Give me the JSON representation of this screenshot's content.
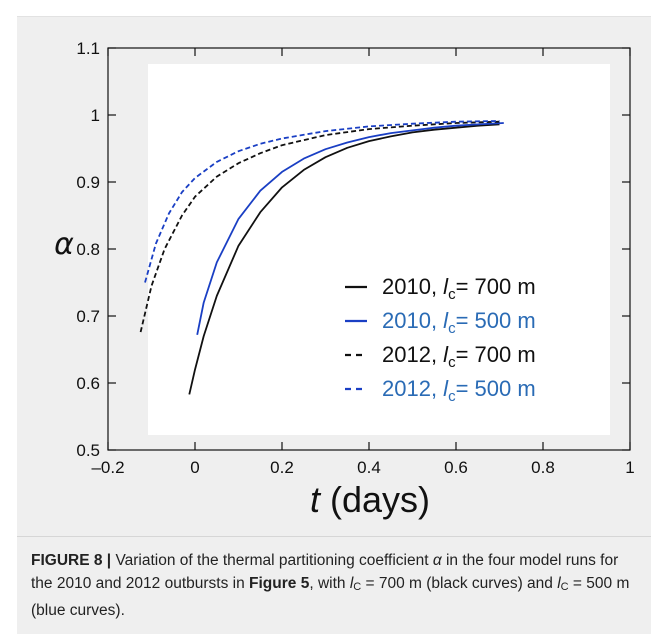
{
  "chart_data": {
    "type": "line",
    "xlabel_var": "t",
    "xlabel_unit": " (days)",
    "ylabel": "α",
    "xlim": [
      -0.2,
      1
    ],
    "ylim": [
      0.5,
      1.1
    ],
    "xticks": [
      -0.2,
      0,
      0.2,
      0.4,
      0.6,
      0.8,
      1
    ],
    "xtick_labels": [
      "–0.2",
      "0",
      "0.2",
      "0.4",
      "0.6",
      "0.8",
      "1"
    ],
    "yticks": [
      0.5,
      0.6,
      0.7,
      0.8,
      0.9,
      1.0,
      1.1
    ],
    "ytick_labels": [
      "0.5",
      "0.6",
      "0.7",
      "0.8",
      "0.9",
      "1",
      "1.1"
    ],
    "series": [
      {
        "legend_year": "2010, ",
        "legend_var": "l",
        "legend_sub": "c",
        "legend_rest": "= 700 m",
        "color": "#111111",
        "dash": "solid",
        "x": [
          -0.013,
          0.0,
          0.02,
          0.05,
          0.1,
          0.15,
          0.2,
          0.25,
          0.3,
          0.35,
          0.4,
          0.45,
          0.5,
          0.55,
          0.6,
          0.65,
          0.7
        ],
        "y": [
          0.583,
          0.62,
          0.67,
          0.73,
          0.805,
          0.855,
          0.892,
          0.918,
          0.937,
          0.951,
          0.961,
          0.968,
          0.974,
          0.978,
          0.981,
          0.984,
          0.986
        ]
      },
      {
        "legend_year": "2010, ",
        "legend_var": "l",
        "legend_sub": "c",
        "legend_rest": "= 500 m",
        "color": "#1a3fc4",
        "dash": "solid",
        "x": [
          0.005,
          0.02,
          0.05,
          0.1,
          0.15,
          0.2,
          0.25,
          0.3,
          0.35,
          0.4,
          0.45,
          0.5,
          0.55,
          0.6,
          0.65,
          0.71
        ],
        "y": [
          0.672,
          0.72,
          0.78,
          0.845,
          0.887,
          0.915,
          0.935,
          0.949,
          0.959,
          0.967,
          0.973,
          0.977,
          0.981,
          0.984,
          0.986,
          0.988
        ]
      },
      {
        "legend_year": "2012, ",
        "legend_var": "l",
        "legend_sub": "c",
        "legend_rest": "= 700 m",
        "color": "#111111",
        "dash": "dashed",
        "x": [
          -0.125,
          -0.1,
          -0.07,
          -0.03,
          0.0,
          0.05,
          0.1,
          0.15,
          0.2,
          0.3,
          0.4,
          0.5,
          0.6,
          0.7
        ],
        "y": [
          0.676,
          0.745,
          0.8,
          0.85,
          0.878,
          0.908,
          0.928,
          0.943,
          0.955,
          0.97,
          0.979,
          0.984,
          0.988,
          0.99
        ]
      },
      {
        "legend_year": "2012, ",
        "legend_var": "l",
        "legend_sub": "c",
        "legend_rest": "= 500 m",
        "color": "#1a3fc4",
        "dash": "dashed",
        "x": [
          -0.115,
          -0.09,
          -0.06,
          -0.03,
          0.0,
          0.05,
          0.1,
          0.15,
          0.2,
          0.3,
          0.4,
          0.5,
          0.6,
          0.7
        ],
        "y": [
          0.75,
          0.808,
          0.853,
          0.885,
          0.906,
          0.93,
          0.946,
          0.957,
          0.965,
          0.976,
          0.983,
          0.987,
          0.99,
          0.991
        ]
      }
    ],
    "legend_placement": "lower-right",
    "legend_text_colors": [
      "#111111",
      "#2a6bb5",
      "#111111",
      "#2a6bb5"
    ],
    "grid": false
  },
  "caption": {
    "label": "FIGURE 8 |",
    "text1": " Variation of the thermal partitioning coefficient ",
    "alpha": "α",
    "text2": " in the four model runs for the 2010 and 2012 outbursts in ",
    "figref": "Figure 5",
    "text3": ", with ",
    "var1": "l",
    "sub1": "C",
    "text4": " = 700 m (black curves) and ",
    "var2": "l",
    "sub2": "C",
    "text5": " = 500 m (blue curves)."
  }
}
